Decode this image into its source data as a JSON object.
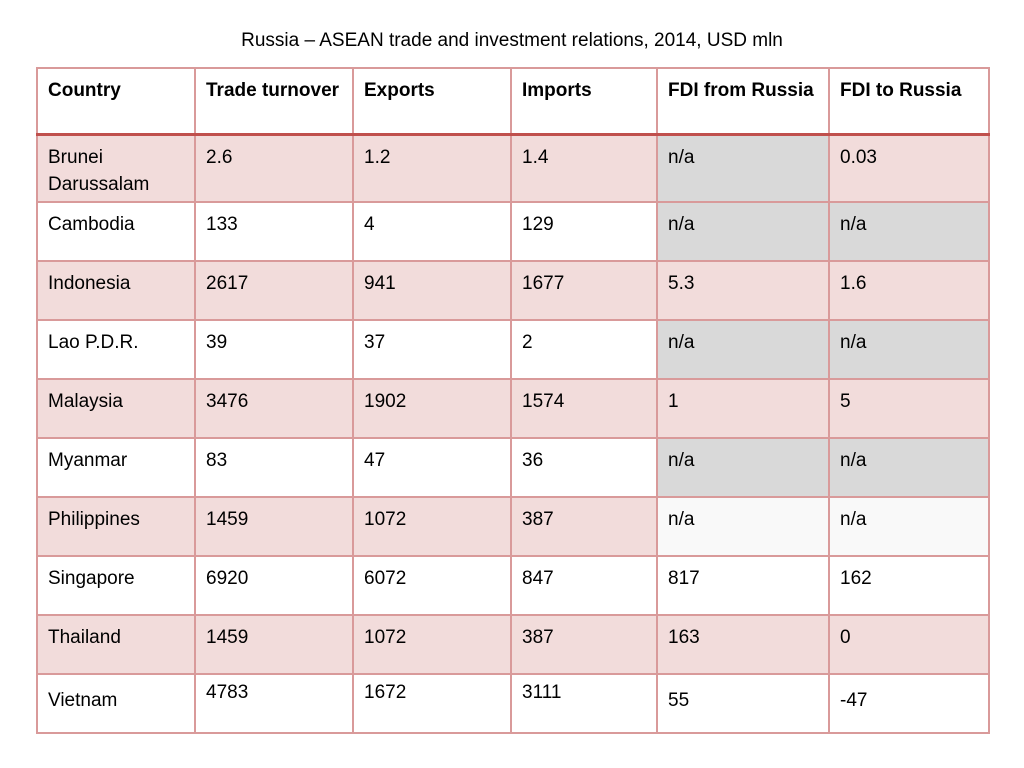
{
  "title": "Russia – ASEAN trade and investment relations, 2014, USD mln",
  "table": {
    "headers": [
      "Country",
      "Trade turnover",
      "Exports",
      "Imports",
      "FDI from Russia",
      "FDI to Russia"
    ],
    "rows": [
      [
        "Brunei Darussalam",
        "2.6",
        "1.2",
        "1.4",
        "n/a",
        "0.03"
      ],
      [
        "Cambodia",
        "133",
        "4",
        "129",
        "n/a",
        "n/a"
      ],
      [
        "Indonesia",
        "2617",
        "941",
        "1677",
        "5.3",
        "1.6"
      ],
      [
        "Lao P.D.R.",
        "39",
        "37",
        "2",
        "n/a",
        "n/a"
      ],
      [
        "Malaysia",
        "3476",
        "1902",
        "1574",
        "1",
        "5"
      ],
      [
        "Myanmar",
        "83",
        "47",
        "36",
        "n/a",
        "n/a"
      ],
      [
        "Philippines",
        "1459",
        "1072",
        "387",
        "n/a",
        "n/a"
      ],
      [
        "Singapore",
        "6920",
        "6072",
        "847",
        "817",
        "162"
      ],
      [
        "Thailand",
        "1459",
        "1072",
        "387",
        "163",
        "0"
      ],
      [
        "Vietnam",
        "4783",
        "1672",
        "3111",
        "55",
        "-47"
      ]
    ]
  },
  "colors": {
    "row_pink": "#f2dcdb",
    "row_white": "#ffffff",
    "cell_na_gray": "#d9d9d9",
    "border": "#d99a9a",
    "header_rule": "#c0504d"
  }
}
